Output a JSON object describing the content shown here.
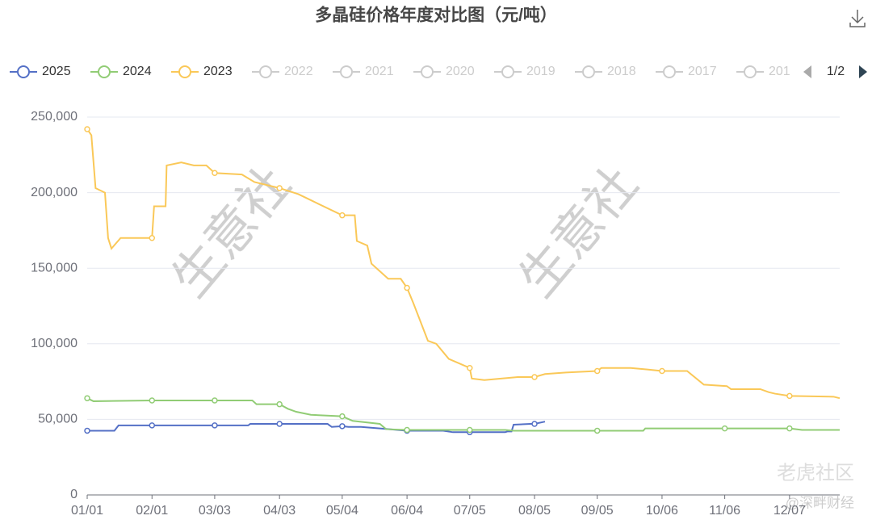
{
  "chart_data": {
    "type": "line",
    "title": "多晶硅价格年度对比图（元/吨）",
    "xlim": [
      0,
      360
    ],
    "xticks": [
      {
        "value": 0,
        "label": "01/01"
      },
      {
        "value": 31,
        "label": "02/01"
      },
      {
        "value": 61,
        "label": "03/03"
      },
      {
        "value": 92,
        "label": "04/03"
      },
      {
        "value": 122,
        "label": "05/04"
      },
      {
        "value": 153,
        "label": "06/04"
      },
      {
        "value": 183,
        "label": "07/05"
      },
      {
        "value": 214,
        "label": "08/05"
      },
      {
        "value": 244,
        "label": "09/05"
      },
      {
        "value": 275,
        "label": "10/06"
      },
      {
        "value": 305,
        "label": "11/06"
      },
      {
        "value": 336,
        "label": "12/07"
      }
    ],
    "ylim": [
      0,
      250000
    ],
    "yticks": [
      0,
      {
        "value": 50000,
        "label": "50,000"
      },
      {
        "value": 100000,
        "label": "100,000"
      },
      {
        "value": 150000,
        "label": "150,000"
      },
      {
        "value": 200000,
        "label": "200,000"
      },
      {
        "value": 250000,
        "label": "250,000"
      }
    ],
    "grid": true,
    "series": [
      {
        "name": "2025",
        "color": "#5470c6",
        "x": [
          0,
          13,
          15,
          31,
          61,
          77,
          78,
          92,
          104,
          115,
          117,
          122,
          125,
          131,
          140,
          153,
          170,
          175,
          183,
          200,
          201,
          203,
          204,
          212,
          214,
          219
        ],
        "values": [
          42500,
          42500,
          46000,
          46000,
          46000,
          46000,
          47000,
          47000,
          47000,
          47000,
          45000,
          45500,
          45000,
          45000,
          44000,
          42500,
          42500,
          41500,
          41500,
          41500,
          42000,
          42000,
          46500,
          47000,
          47000,
          48500
        ]
      },
      {
        "name": "2024",
        "color": "#91cc75",
        "x": [
          0,
          3,
          31,
          61,
          79,
          81,
          92,
          96,
          100,
          107,
          122,
          127,
          140,
          143,
          153,
          183,
          200,
          204,
          244,
          266,
          267,
          305,
          336,
          342,
          360
        ],
        "values": [
          64000,
          62000,
          62500,
          62500,
          62500,
          60000,
          60000,
          57000,
          55000,
          53000,
          52000,
          49000,
          47000,
          43500,
          43000,
          43000,
          43000,
          42500,
          42500,
          42500,
          44000,
          44000,
          44000,
          43000,
          43000
        ]
      },
      {
        "name": "2023",
        "color": "#fac858",
        "x": [
          0,
          2,
          4,
          8.5,
          10,
          11.6,
          16,
          31,
          32,
          37.5,
          38,
          45,
          51,
          57,
          61,
          74,
          80,
          92,
          101,
          107,
          122,
          128,
          129,
          134,
          136,
          144,
          150,
          153,
          156,
          163,
          167,
          173,
          183,
          184,
          190,
          198,
          206,
          214,
          219,
          229,
          244,
          246,
          260,
          268,
          275,
          287,
          295,
          306,
          308,
          322,
          326,
          329,
          336,
          357,
          360
        ],
        "values": [
          242000,
          238000,
          203000,
          200000,
          170000,
          163000,
          170000,
          170000,
          191000,
          191000,
          218000,
          220000,
          218000,
          218000,
          213000,
          212000,
          207000,
          203000,
          199000,
          195000,
          185000,
          185000,
          168000,
          165000,
          153000,
          143000,
          143000,
          137000,
          127000,
          102000,
          100000,
          90000,
          84000,
          77000,
          76000,
          77000,
          78000,
          78000,
          80000,
          81000,
          82000,
          84000,
          84000,
          83000,
          82000,
          82000,
          73000,
          72000,
          70000,
          70000,
          68000,
          67000,
          65500,
          65000,
          64000
        ]
      }
    ],
    "legend_inactive": [
      "2022",
      "2021",
      "2020",
      "2019",
      "2018",
      "2017",
      "201"
    ],
    "legend_inactive_color": "#cccccc",
    "legend_page": "1/2",
    "watermarks": [
      "生意社",
      "生意社"
    ],
    "corner_marks": [
      "老虎社区",
      "@深畔财经"
    ]
  }
}
